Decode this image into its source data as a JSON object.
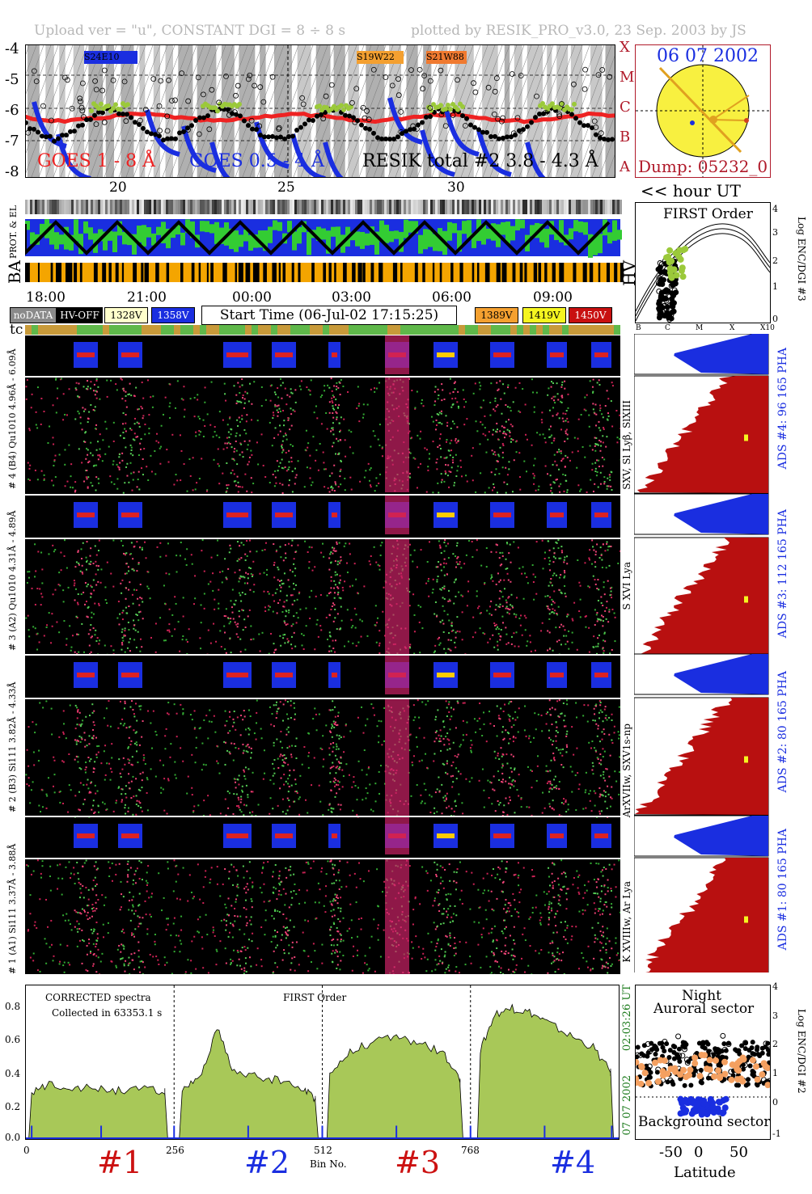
{
  "header": {
    "left": "Upload ver = \"u\", CONSTANT  DGI =   8 ÷   8 s",
    "right": "plotted by RESIK_PRO_v3.0, 23 Sep. 2003 by JS"
  },
  "goes_panel": {
    "yticks": [
      "-4",
      "-5",
      "-6",
      "-7",
      "-8"
    ],
    "xticks": [
      "20",
      "25",
      "30"
    ],
    "class_labels": [
      "X",
      "M",
      "C",
      "B",
      "A"
    ],
    "legend_goes1": "GOES 1 - 8 Å",
    "legend_goes05": "GOES 0.5 - 4 Å",
    "legend_resik": "RESIK total #2  3.8 - 4.3 Å",
    "ar_labels": [
      "S24E10",
      "S19W22",
      "S21W88"
    ],
    "colors": {
      "goes1": "#ee2222",
      "goes05": "#1a2ee0",
      "resik": "#9bc93a"
    }
  },
  "sun_panel": {
    "date": "06 07 2002",
    "dump": "Dump: 05232_0",
    "hour_label": "<< hour UT"
  },
  "status_panel": {
    "label_prot": "PROT. & EL",
    "label_ba": "BA",
    "label_hv": "HV",
    "time_ticks": [
      "18:00",
      "21:00",
      "00:00",
      "03:00",
      "06:00",
      "09:00"
    ],
    "legend": [
      {
        "text": "noDATA",
        "bg": "#8a8a8a",
        "fg": "#ffffff"
      },
      {
        "text": "HV-OFF",
        "bg": "#000000",
        "fg": "#ffffff"
      },
      {
        "text": "1328V",
        "bg": "#ffffcc",
        "fg": "#000000"
      },
      {
        "text": "1358V",
        "bg": "#1a2ee0",
        "fg": "#ffffff"
      },
      {
        "text": "1389V",
        "bg": "#f4a030",
        "fg": "#000000"
      },
      {
        "text": "1419V",
        "bg": "#f5f520",
        "fg": "#000000"
      },
      {
        "text": "1450V",
        "bg": "#c81010",
        "fg": "#ffffff"
      }
    ],
    "start_time": "Start Time (06-Jul-02 17:15:25)"
  },
  "first_order": {
    "title": "FIRST Order",
    "ylabel": "Log ENC/DGI #3",
    "yticks": [
      "4",
      "3",
      "2",
      "1",
      "0"
    ],
    "xticks": [
      "B",
      "C",
      "M",
      "X",
      "X10"
    ]
  },
  "spectrogram": {
    "tc_label": "tc",
    "channels": [
      {
        "left_label": "# 4 (B4) Qu1010 4.96Å - 6.09Å",
        "line_label": "SXV, Sl Lyβ, SlXIII",
        "ads_label": "ADS #4:   96 165 PHA"
      },
      {
        "left_label": "# 3 (A2) Qu1010 4.31Å - 4.89Å",
        "line_label": "S XVI Lya",
        "ads_label": "ADS #3:   112 165   PHA"
      },
      {
        "left_label": "# 2 (B3) Si111  3.82Å - 4.33Å",
        "line_label": "ArXVIIw, SXV1s-np",
        "ads_label": "ADS #2:   80 165   PHA"
      },
      {
        "left_label": "# 1 (A1) Si111  3.37Å - 3.88Å",
        "line_label": "K XVIIIw, Ar Lya",
        "ads_label": "ADS #1:   80 165   PHA"
      }
    ]
  },
  "bottom_spectra": {
    "note1": "CORRECTED spectra",
    "note2": "Collected in 63353.1 s",
    "order": "FIRST Order",
    "yticks": [
      "0.8",
      "0.6",
      "0.4",
      "0.2",
      "0.0"
    ],
    "xticks": [
      "0",
      "256",
      "512",
      "768"
    ],
    "xlabel": "Bin No.",
    "right_date": "07 07 2002",
    "right_time": "02:03:26 UT",
    "channel_labels": [
      "#1",
      "#2",
      "#3",
      "#4"
    ],
    "channel_colors": [
      "#cc1111",
      "#1a2ee0",
      "#cc1111",
      "#1a2ee0"
    ]
  },
  "latitude_panel": {
    "night": "Night",
    "auroral": "Auroral sector",
    "background": "Background sector",
    "xticks": [
      "-50",
      "0",
      "50"
    ],
    "xlabel": "Latitude",
    "yticks": [
      "4",
      "3",
      "2",
      "1",
      "0",
      "-1"
    ],
    "ylabel": "Log ENC/DGI #2"
  },
  "chart_data": {
    "type": "area",
    "title": "",
    "xlabel": "Bin No.",
    "ylabel": "",
    "xlim": [
      0,
      1024
    ],
    "ylim": [
      0,
      0.9
    ],
    "series": [
      {
        "name": "#1",
        "x": [
          10,
          40,
          80,
          120,
          160,
          200,
          240
        ],
        "values": [
          0.27,
          0.33,
          0.31,
          0.3,
          0.29,
          0.3,
          0.28
        ]
      },
      {
        "name": "#2",
        "x": [
          270,
          300,
          330,
          360,
          400,
          440,
          480,
          500
        ],
        "values": [
          0.3,
          0.35,
          0.66,
          0.4,
          0.37,
          0.35,
          0.3,
          0.24
        ]
      },
      {
        "name": "#3",
        "x": [
          525,
          560,
          600,
          640,
          680,
          720,
          750
        ],
        "values": [
          0.38,
          0.53,
          0.58,
          0.61,
          0.57,
          0.52,
          0.34
        ]
      },
      {
        "name": "#4",
        "x": [
          785,
          810,
          840,
          870,
          900,
          940,
          980,
          1010
        ],
        "values": [
          0.53,
          0.75,
          0.78,
          0.76,
          0.7,
          0.62,
          0.55,
          0.4
        ]
      }
    ]
  }
}
